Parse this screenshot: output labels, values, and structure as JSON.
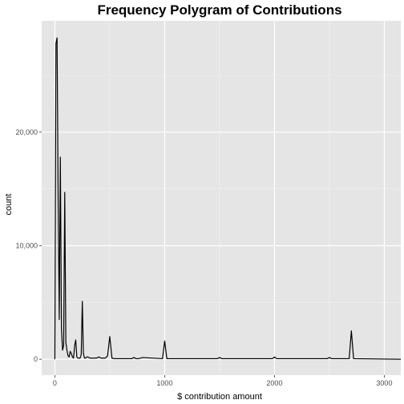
{
  "chart_data": {
    "type": "line",
    "title": "Frequency Polygram of Contributions",
    "xlabel": "$ contribution amount",
    "ylabel": "count",
    "xlim": [
      -120,
      3150
    ],
    "ylim": [
      -1400,
      29800
    ],
    "x_ticks": [
      0,
      1000,
      2000,
      3000
    ],
    "x_tick_labels": [
      "0",
      "1000",
      "2000",
      "3000"
    ],
    "y_ticks": [
      0,
      10000,
      20000
    ],
    "y_tick_labels": [
      "0",
      "10,000",
      "20,000"
    ],
    "grid": true,
    "legend": "none",
    "line_color": "#000000",
    "panel_color": "#e5e5e5",
    "series": [
      {
        "x": [
          0,
          10,
          20,
          30,
          40,
          50,
          60,
          70,
          80,
          90,
          100,
          110,
          120,
          130,
          140,
          150,
          160,
          170,
          180,
          190,
          200,
          210,
          220,
          230,
          240,
          250,
          260,
          270,
          280,
          290,
          300,
          320,
          340,
          360,
          380,
          400,
          420,
          440,
          460,
          480,
          500,
          520,
          540,
          580,
          700,
          720,
          740,
          760,
          800,
          980,
          1000,
          1020,
          1480,
          1500,
          1520,
          1980,
          2000,
          2020,
          2480,
          2500,
          2520,
          2680,
          2700,
          2720,
          3150
        ],
        "y": [
          0,
          27800,
          28300,
          14000,
          3500,
          17800,
          2700,
          800,
          1200,
          14700,
          1500,
          800,
          300,
          200,
          700,
          500,
          200,
          100,
          1200,
          1700,
          200,
          100,
          100,
          100,
          400,
          5100,
          500,
          100,
          100,
          200,
          200,
          100,
          100,
          100,
          100,
          200,
          100,
          100,
          100,
          300,
          2000,
          100,
          50,
          50,
          50,
          150,
          50,
          50,
          150,
          50,
          1600,
          50,
          50,
          150,
          50,
          50,
          200,
          50,
          50,
          150,
          50,
          50,
          2500,
          50,
          0
        ]
      }
    ]
  }
}
